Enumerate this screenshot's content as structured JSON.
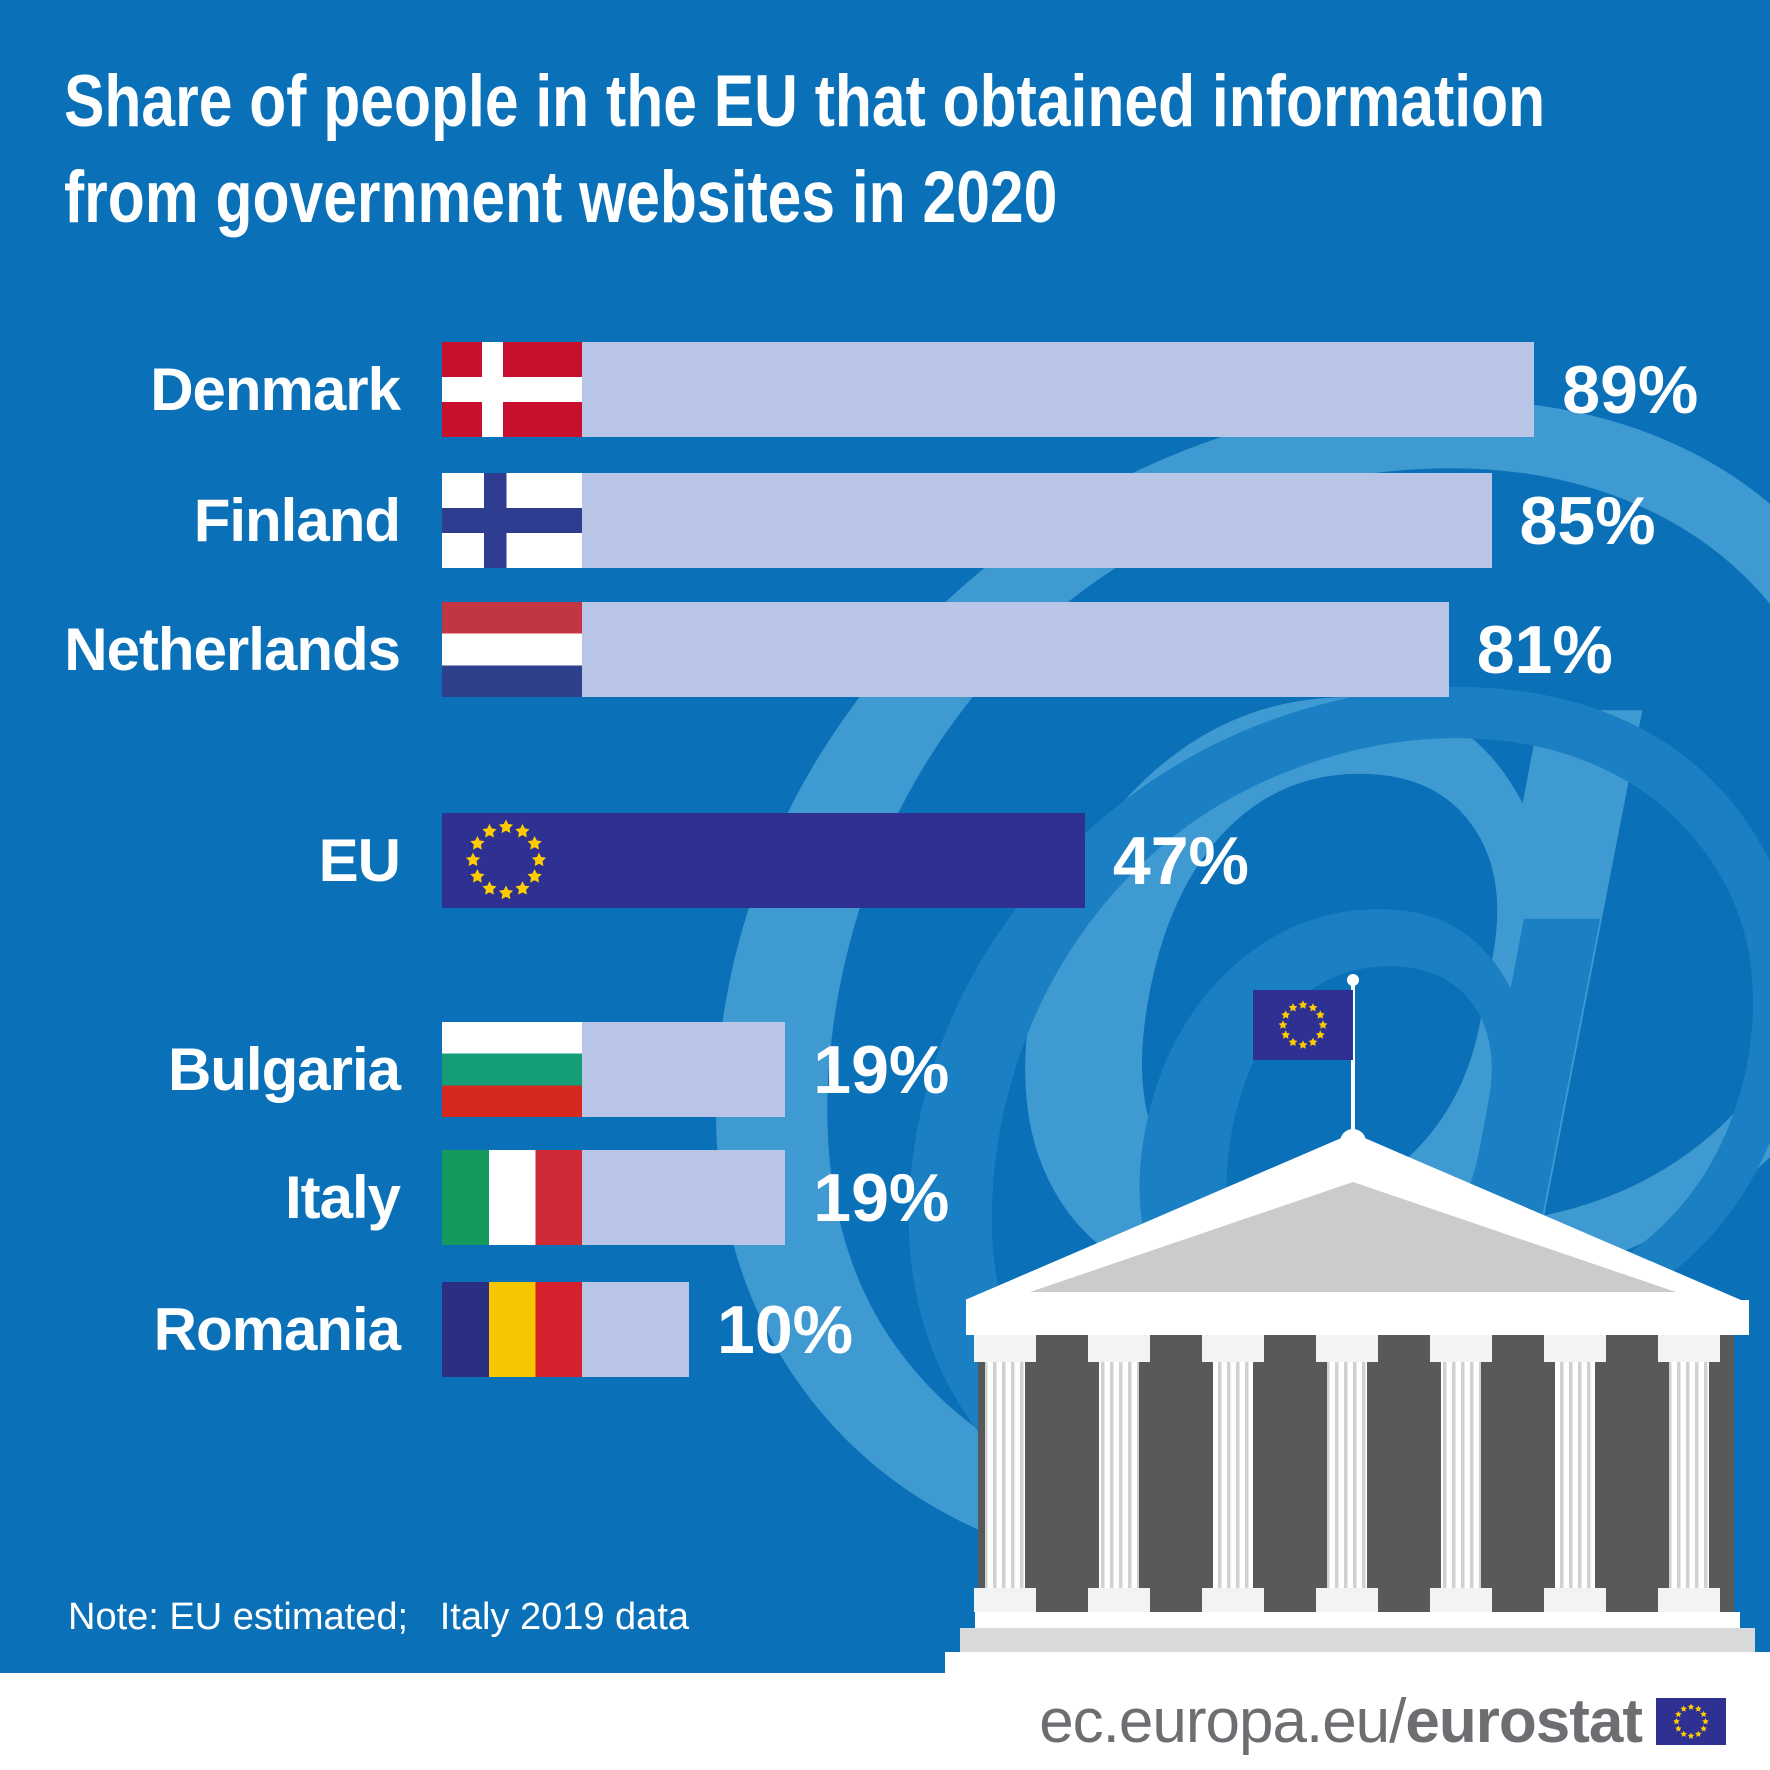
{
  "title": {
    "line1": "Share of people in the EU that obtained information",
    "line2": "from government websites in 2020"
  },
  "chart_data": {
    "type": "bar",
    "orientation": "horizontal",
    "unit": "%",
    "title": "Share of people in the EU that obtained information from government websites in 2020",
    "categories": [
      "Denmark",
      "Finland",
      "Netherlands",
      "EU",
      "Bulgaria",
      "Italy",
      "Romania"
    ],
    "values": [
      89,
      85,
      81,
      47,
      19,
      19,
      10
    ],
    "value_labels": [
      "89%",
      "85%",
      "81%",
      "47%",
      "19%",
      "19%",
      "10%"
    ],
    "xlim": [
      0,
      100
    ],
    "grid": false,
    "legend": false,
    "highlighted_category": "EU",
    "note": "Note: EU estimated; Italy 2019 data"
  },
  "note": "Note: EU estimated;   Italy 2019 data",
  "footer": {
    "url_prefix": "ec.europa.eu/",
    "url_bold": "eurostat"
  },
  "icons": {
    "flags": [
      "denmark-flag",
      "finland-flag",
      "netherlands-flag",
      "eu-flag-stars",
      "bulgaria-flag",
      "italy-flag",
      "romania-flag"
    ],
    "illustration": "classical-government-building-with-eu-flag",
    "watermark": "at-sign"
  },
  "colors": {
    "bg_blue": "#0a70b8",
    "bar_light": "#b9c5e6",
    "eu_navy": "#2e3192",
    "star_yellow": "#ffcc00",
    "wm_light": "#3f9ad1",
    "wm_mid": "#1a80c3",
    "footer_gray": "#6d6e71",
    "building_dark": "#58595b",
    "building_gray": "#d8d9da"
  }
}
